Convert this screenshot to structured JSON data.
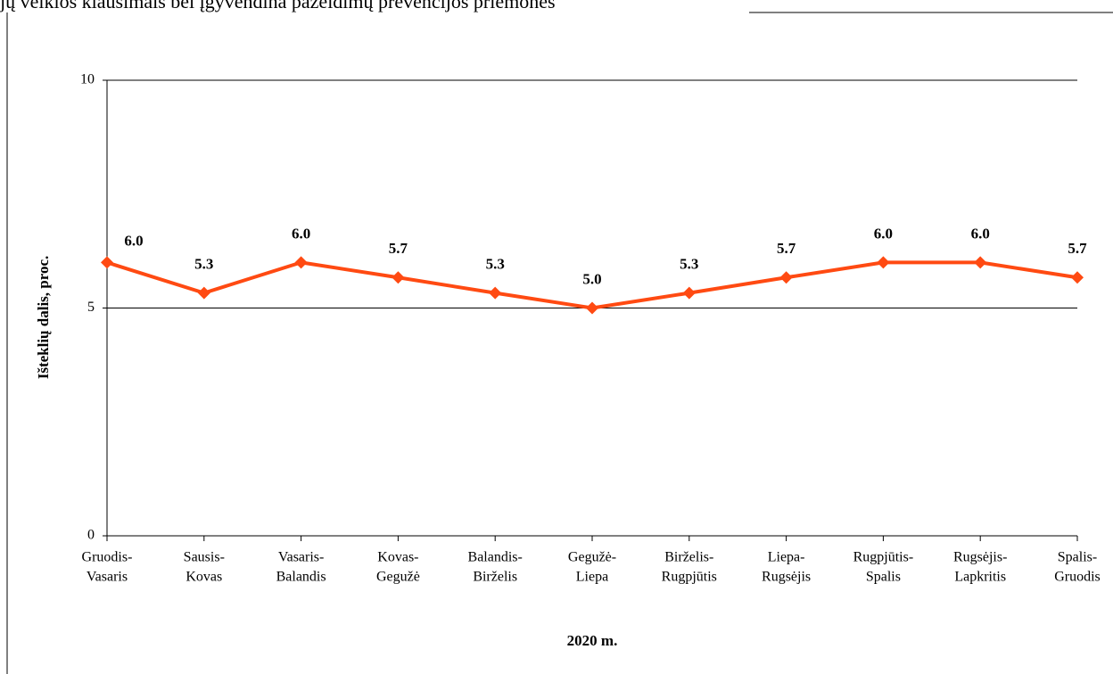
{
  "chart_data": {
    "type": "line",
    "title": "jų veiklos klausimais bei įgyvendina pažeidimų prevencijos priemones",
    "y_label": "Išteklių dalis, proc.",
    "x_label": "2020 m.",
    "categories": [
      [
        "Gruodis-",
        "Vasaris"
      ],
      [
        "Sausis-",
        "Kovas"
      ],
      [
        "Vasaris-",
        "Balandis"
      ],
      [
        "Kovas-",
        "Gegužė"
      ],
      [
        "Balandis-",
        "Birželis"
      ],
      [
        "Gegužė-",
        "Liepa"
      ],
      [
        "Birželis-",
        "Rugpjūtis"
      ],
      [
        "Liepa-",
        "Rugsėjis"
      ],
      [
        "Rugpjūtis-",
        "Spalis"
      ],
      [
        "Rugsėjis-",
        "Lapkritis"
      ],
      [
        "Spalis-",
        "Gruodis"
      ]
    ],
    "values": [
      6.0,
      5.33,
      6.0,
      5.67,
      5.33,
      5.0,
      5.33,
      5.67,
      6.0,
      6.0,
      5.67
    ],
    "value_labels": [
      "6.0",
      "5.3",
      "6.0",
      "5.7",
      "5.3",
      "5.0",
      "5.3",
      "5.7",
      "6.0",
      "6.0",
      "5.7"
    ],
    "color": "#ff4a12",
    "ylim": [
      0,
      10
    ],
    "yticks": [
      0,
      5,
      10
    ],
    "grid": true
  }
}
